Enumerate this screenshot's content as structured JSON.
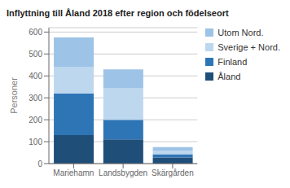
{
  "chart_data": {
    "type": "bar",
    "title": "Inflyttning till Åland 2018 efter region och födelseort",
    "ylabel": "Personer",
    "categories": [
      "Mariehamn",
      "Landsbygden",
      "Skärgården"
    ],
    "series": [
      {
        "name": "Åland",
        "color": "#1F4E79",
        "values": [
          130,
          110,
          28
        ]
      },
      {
        "name": "Finland",
        "color": "#2E75B6",
        "values": [
          190,
          90,
          15
        ]
      },
      {
        "name": "Sverige + Nord.",
        "color": "#BDD7EE",
        "values": [
          120,
          145,
          15
        ]
      },
      {
        "name": "Utom Nord.",
        "color": "#9DC3E6",
        "values": [
          135,
          85,
          17
        ]
      }
    ],
    "ylim": [
      0,
      620
    ],
    "yticks": [
      0,
      100,
      200,
      300,
      400,
      500,
      600
    ],
    "stacked": true,
    "grid": true,
    "legend": "right"
  }
}
